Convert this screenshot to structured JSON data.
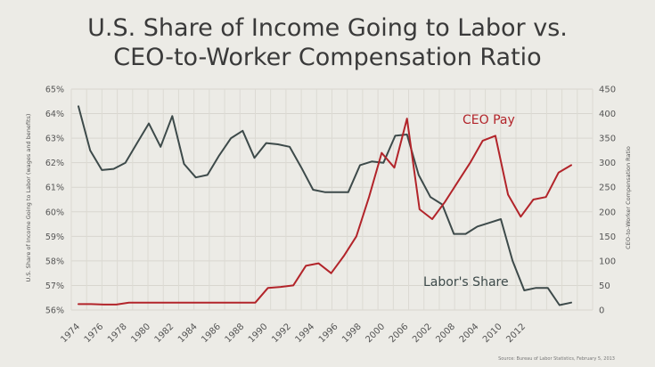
{
  "chart_data": {
    "type": "line",
    "title_line1": "U.S. Share of Income Going to Labor vs.",
    "title_line2": "CEO-to-Worker Compensation Ratio",
    "ylabel_left": "U.S. Share of Income Going to Labor (wages and benefits)",
    "ylabel_right": "CEO-to-Worker Compensation Ratio",
    "x_tick_labels": [
      "1974",
      "1976",
      "1978",
      "1980",
      "1982",
      "1984",
      "1986",
      "1988",
      "1990",
      "1992",
      "1994",
      "1996",
      "1998",
      "2000",
      "2006",
      "2002",
      "2008",
      "2004",
      "2010",
      "2012"
    ],
    "left_axis": {
      "min": 56,
      "max": 65,
      "tick_labels": [
        "56%",
        "57%",
        "58%",
        "59%",
        "60%",
        "61%",
        "62%",
        "63%",
        "64%",
        "65%"
      ]
    },
    "right_axis": {
      "min": 0,
      "max": 450,
      "tick_labels": [
        "0",
        "50",
        "100",
        "150",
        "200",
        "250",
        "300",
        "350",
        "400",
        "450"
      ]
    },
    "grid": true,
    "series": [
      {
        "name": "Labor's Share",
        "axis": "left",
        "color": "#3d4a4a",
        "values": [
          64.3,
          62.5,
          61.7,
          61.75,
          62.0,
          62.8,
          63.6,
          62.65,
          63.9,
          61.95,
          61.4,
          61.5,
          62.3,
          63.0,
          63.3,
          62.2,
          62.8,
          62.75,
          62.65,
          61.8,
          60.9,
          60.8,
          60.8,
          60.8,
          61.9,
          62.05,
          62.0,
          63.1,
          63.15,
          61.5,
          60.6,
          60.3,
          59.1,
          59.1,
          59.4,
          59.55,
          59.7,
          58.0,
          56.8,
          56.9,
          56.9,
          56.2,
          56.3
        ]
      },
      {
        "name": "CEO Pay",
        "axis": "right",
        "color": "#b2242a",
        "values": [
          12,
          12,
          11,
          11,
          15,
          15,
          15,
          15,
          15,
          15,
          15,
          15,
          15,
          15,
          15,
          45,
          47,
          50,
          90,
          95,
          75,
          110,
          150,
          230,
          320,
          290,
          390,
          205,
          185,
          220,
          260,
          300,
          345,
          355,
          235,
          190,
          225,
          230,
          280,
          295
        ]
      }
    ],
    "annotations": [
      "CEO Pay",
      "Labor's Share"
    ],
    "source": "Source: Bureau of Labor Statistics, February 5, 2013"
  }
}
